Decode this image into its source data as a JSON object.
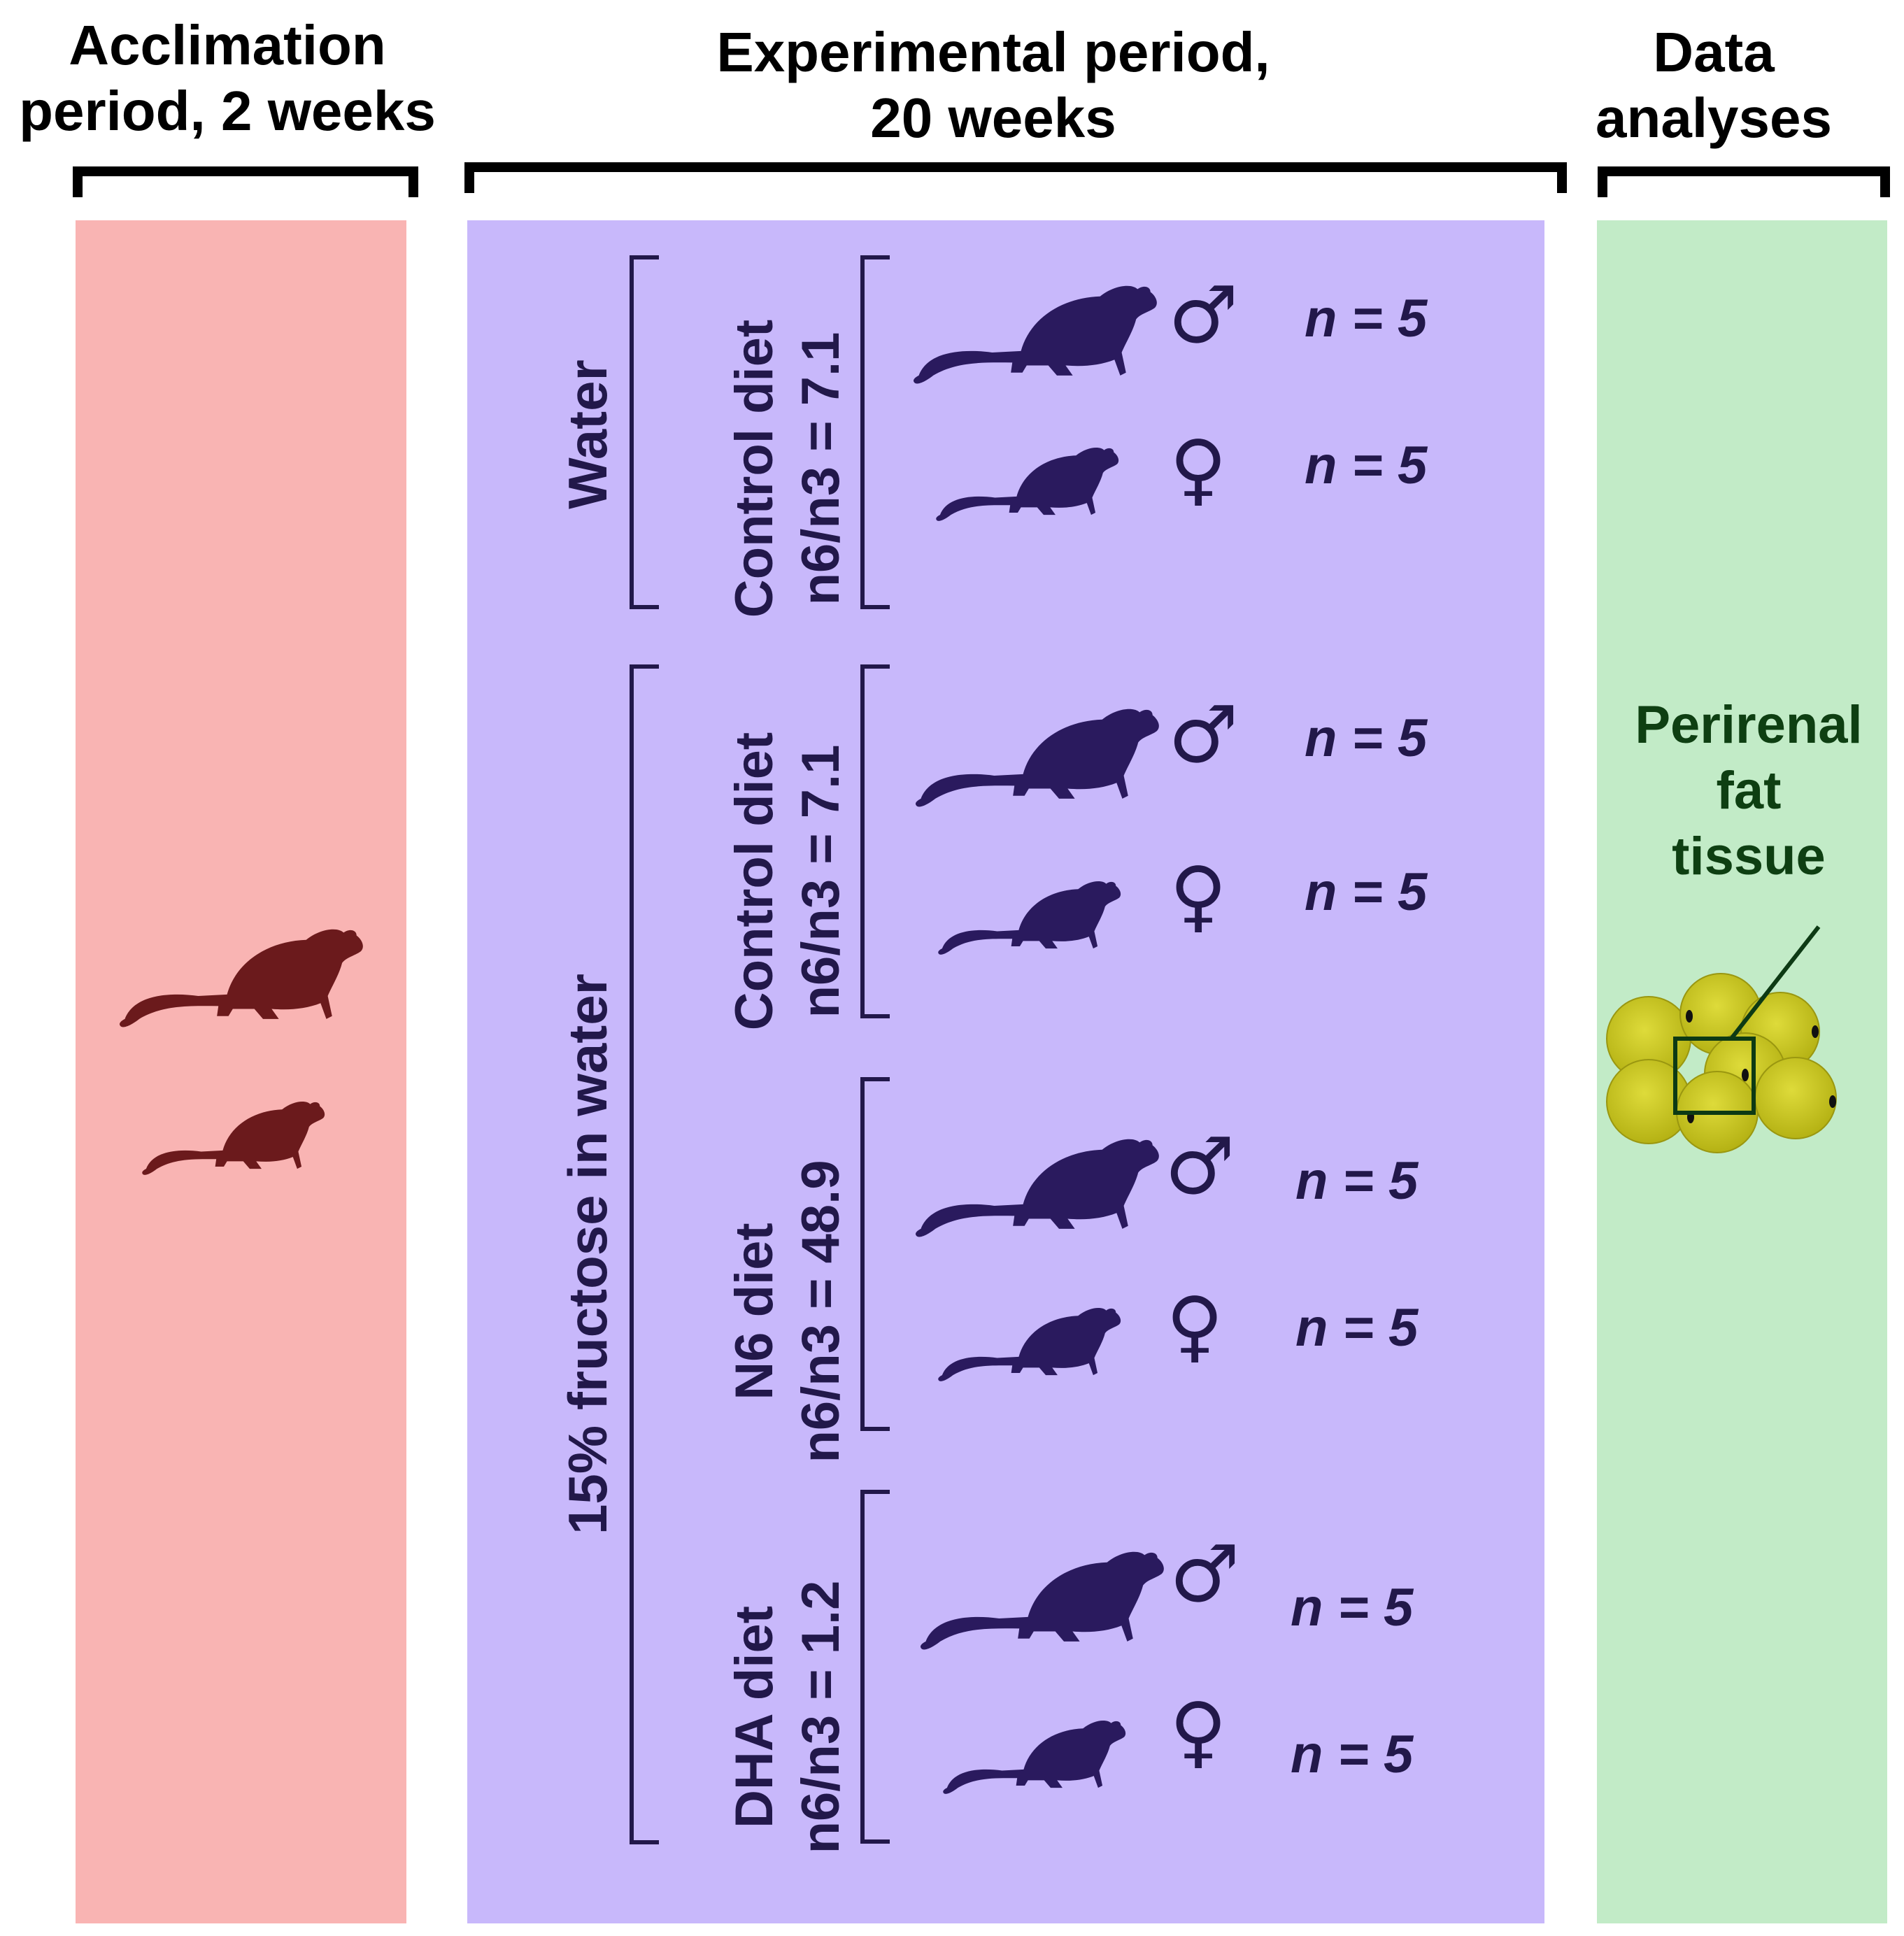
{
  "headers": {
    "acclimation_line1": "Acclimation",
    "acclimation_line2": "period, 2 weeks",
    "experimental_line1": "Experimental period,",
    "experimental_line2": "20 weeks",
    "analyses_line1": "Data",
    "analyses_line2": "analyses"
  },
  "colors": {
    "acclimation_panel": "#f9b4b3",
    "experimental_panel": "#c8b8fb",
    "analyses_panel": "#c2ebc7",
    "rat_acclimation": "#6b1a1c",
    "rat_experimental": "#2a1a5e",
    "fat_cell": "#c9c71c"
  },
  "groups": [
    {
      "name": "Water"
    },
    {
      "name": "15% fructose in water"
    }
  ],
  "diets": [
    {
      "name": "Control diet",
      "ratio": "n6/n3 = 7.1",
      "male_n": "n = 5",
      "female_n": "n = 5"
    },
    {
      "name": "Control diet",
      "ratio": "n6/n3 = 7.1",
      "male_n": "n = 5",
      "female_n": "n = 5"
    },
    {
      "name": "N6 diet",
      "ratio": "n6/n3 = 48.9",
      "male_n": "n = 5",
      "female_n": "n = 5"
    },
    {
      "name": "DHA diet",
      "ratio": "n6/n3 = 1.2",
      "male_n": "n = 5",
      "female_n": "n = 5"
    }
  ],
  "symbols": {
    "male": "♂",
    "female": "♀"
  },
  "icons": {
    "rat": "rat-icon",
    "fat": "adipocyte-cluster-icon"
  },
  "analyses": {
    "tissue_line1": "Perirenal",
    "tissue_line2": "fat",
    "tissue_line3": "tissue"
  }
}
